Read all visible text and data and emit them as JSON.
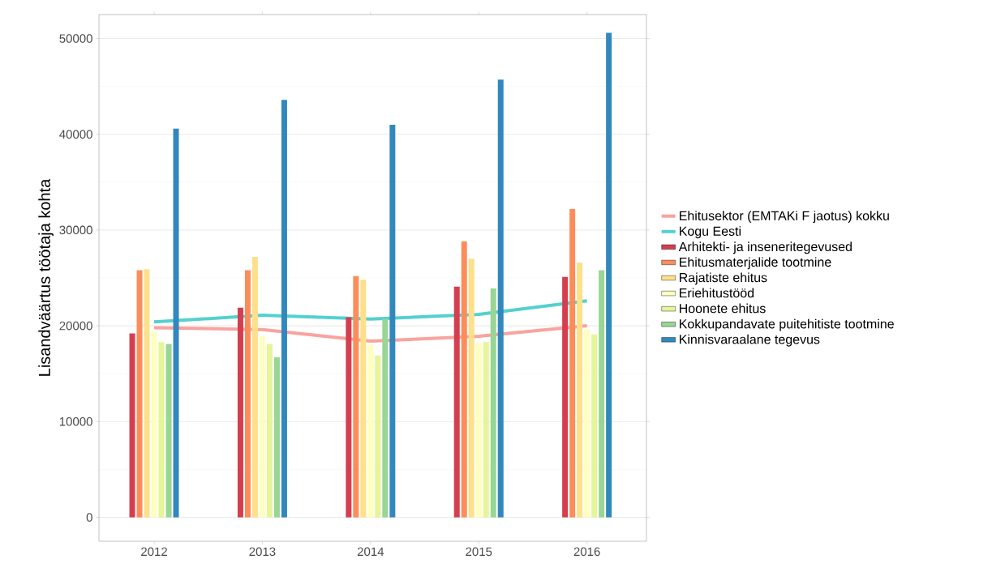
{
  "chart_data": {
    "type": "bar",
    "ylabel": "Lisandväärtus töötaja kohta",
    "categories": [
      "2012",
      "2013",
      "2014",
      "2015",
      "2016"
    ],
    "ylim": [
      -2500,
      52500
    ],
    "yticks": [
      0,
      10000,
      20000,
      30000,
      40000,
      50000
    ],
    "grid": "y",
    "legend": "right",
    "series": [
      {
        "name": "Arhitekti- ja inseneritegevused",
        "color": "#d53e4f",
        "values": [
          19200,
          21900,
          20900,
          24100,
          25100
        ]
      },
      {
        "name": "Ehitusmaterjalide tootmine",
        "color": "#fc8d59",
        "values": [
          25800,
          25800,
          25200,
          28800,
          32200
        ]
      },
      {
        "name": "Rajatiste ehitus",
        "color": "#fee08b",
        "values": [
          25900,
          27200,
          24800,
          27000,
          26600
        ]
      },
      {
        "name": "Eriehitustööd",
        "color": "#ffffbf",
        "values": [
          19400,
          18900,
          18000,
          18200,
          19600
        ]
      },
      {
        "name": "Hoonete ehitus",
        "color": "#e6f598",
        "values": [
          18300,
          18100,
          16900,
          18300,
          19100
        ]
      },
      {
        "name": "Kokkupandavate puitehitiste tootmine",
        "color": "#99d594",
        "values": [
          18100,
          16700,
          20700,
          23900,
          25800
        ]
      },
      {
        "name": "Kinnisvaraalane tegevus",
        "color": "#3288bd",
        "values": [
          40600,
          43600,
          41000,
          45700,
          50600
        ]
      },
      {
        "name": "Ehitusektor (EMTAKi F jaotus) kokku",
        "color": "#f8938e",
        "type": "line",
        "values": [
          19800,
          19600,
          18400,
          18900,
          20000
        ]
      },
      {
        "name": "Kogu Eesti",
        "color": "#36c8c8",
        "type": "line",
        "values": [
          20400,
          21100,
          20700,
          21200,
          22600
        ]
      }
    ]
  }
}
